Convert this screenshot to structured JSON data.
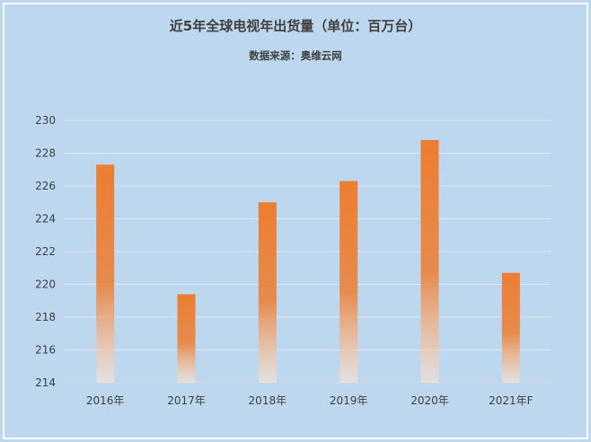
{
  "chart_data": {
    "type": "bar",
    "title": "近5年全球电视年出货量（单位：百万台）",
    "subtitle": "数据来源：奥维云网",
    "categories": [
      "2016年",
      "2017年",
      "2018年",
      "2019年",
      "2020年",
      "2021年F"
    ],
    "values": [
      227.3,
      219.4,
      225.0,
      226.3,
      228.8,
      220.7
    ],
    "ylim": [
      214,
      230
    ],
    "yticks": [
      214,
      216,
      218,
      220,
      222,
      224,
      226,
      228,
      230
    ],
    "grid": true,
    "legend": "none"
  },
  "colors": {
    "background": "#bdd7ee",
    "bar_top": "#ed7d31",
    "bar_bottom": "#fbe5d6",
    "frame": "#ffffff"
  }
}
